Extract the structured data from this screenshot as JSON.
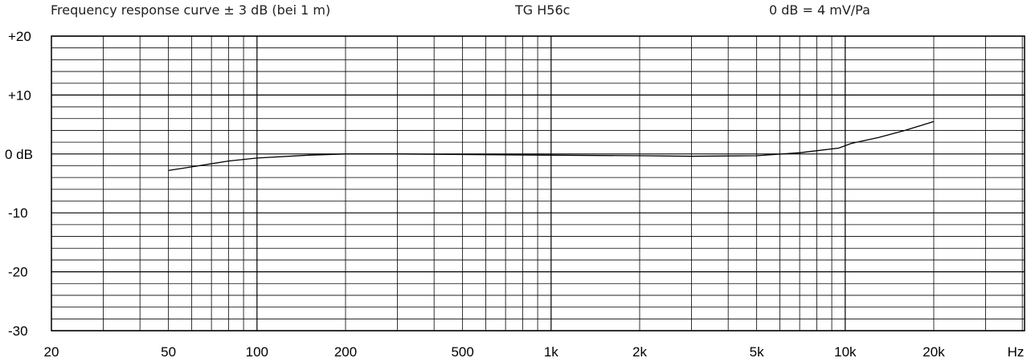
{
  "header": {
    "title": "Frequency response curve ± 3 dB (bei 1 m)",
    "model": "TG H56c",
    "reference": "0 dB =  4 mV/Pa"
  },
  "chart_data": {
    "type": "line",
    "title": "Frequency response curve ± 3 dB (bei 1 m)",
    "x_scale": "log",
    "xlim": [
      20,
      20000
    ],
    "ylim": [
      -30,
      20
    ],
    "grid": true,
    "x_ticks": [
      {
        "value": 20,
        "label": "20"
      },
      {
        "value": 50,
        "label": "50"
      },
      {
        "value": 100,
        "label": "100"
      },
      {
        "value": 200,
        "label": "200"
      },
      {
        "value": 500,
        "label": "500"
      },
      {
        "value": 1000,
        "label": "1k"
      },
      {
        "value": 2000,
        "label": "2k"
      },
      {
        "value": 5000,
        "label": "5k"
      },
      {
        "value": 10000,
        "label": "10k"
      },
      {
        "value": 20000,
        "label": "20k"
      }
    ],
    "x_unit_label": "Hz",
    "y_ticks": [
      {
        "value": 20,
        "label": "+20"
      },
      {
        "value": 10,
        "label": "+10"
      },
      {
        "value": 0,
        "label": "0 dB"
      },
      {
        "value": -10,
        "label": "-10"
      },
      {
        "value": -20,
        "label": "-20"
      },
      {
        "value": -30,
        "label": "-30"
      }
    ],
    "series": [
      {
        "x": [
          50,
          60,
          80,
          100,
          150,
          200,
          300,
          500,
          1000,
          2000,
          3000,
          5000,
          7000,
          9500,
          10500,
          13000,
          16000,
          20000
        ],
        "y": [
          -2.8,
          -2.2,
          -1.2,
          -0.7,
          -0.2,
          0,
          0,
          -0.1,
          -0.2,
          -0.3,
          -0.4,
          -0.3,
          0.2,
          1.0,
          1.8,
          2.8,
          4.0,
          5.5
        ]
      }
    ]
  }
}
